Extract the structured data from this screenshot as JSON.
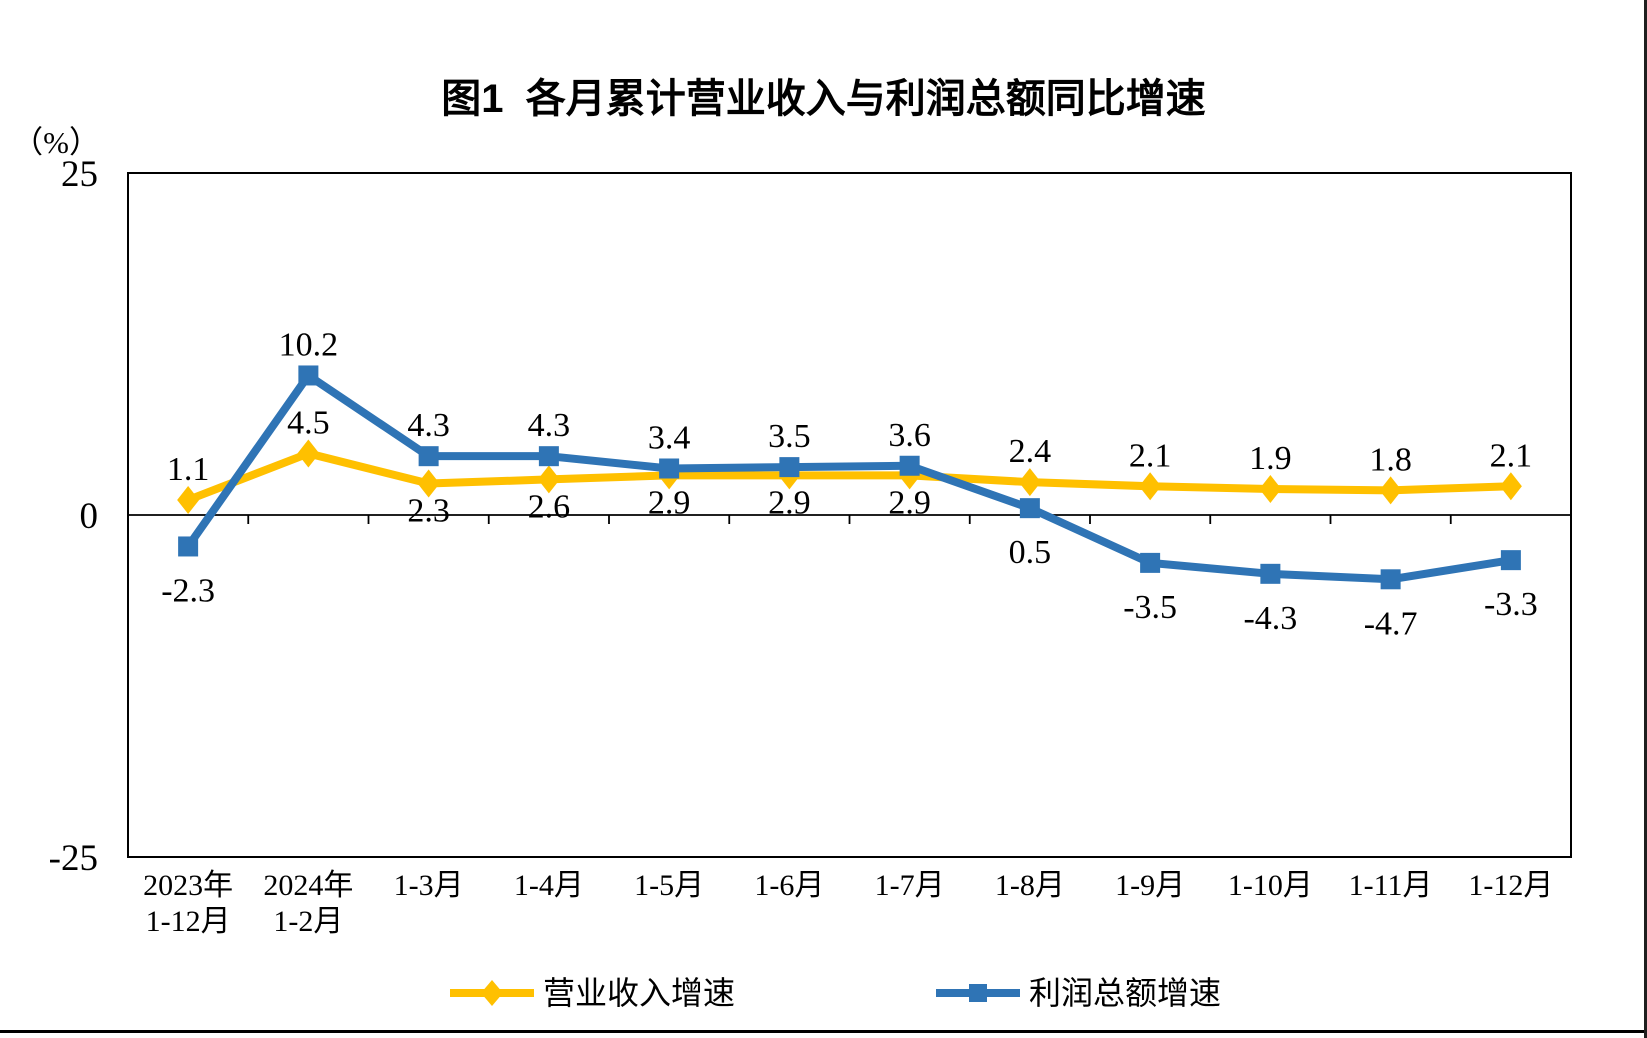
{
  "chart_data": {
    "type": "line",
    "title": "图1  各月累计营业收入与利润总额同比增速",
    "ylabel": "（%）",
    "xlabel": "",
    "ylim": [
      -25,
      25
    ],
    "yticks": [
      25,
      0,
      -25
    ],
    "grid": false,
    "legend_position": "bottom",
    "categories": [
      [
        "2023年",
        "1-12月"
      ],
      [
        "2024年",
        "1-2月"
      ],
      [
        "1-3月"
      ],
      [
        "1-4月"
      ],
      [
        "1-5月"
      ],
      [
        "1-6月"
      ],
      [
        "1-7月"
      ],
      [
        "1-8月"
      ],
      [
        "1-9月"
      ],
      [
        "1-10月"
      ],
      [
        "1-11月"
      ],
      [
        "1-12月"
      ]
    ],
    "series": [
      {
        "name": "营业收入增速",
        "color": "#FFC000",
        "marker": "diamond",
        "values": [
          1.1,
          4.5,
          2.3,
          2.6,
          2.9,
          2.9,
          2.9,
          2.4,
          2.1,
          1.9,
          1.8,
          2.1
        ],
        "label_positions": [
          "above",
          "above",
          "below",
          "below",
          "below",
          "below",
          "below",
          "above",
          "above",
          "above",
          "above",
          "above"
        ]
      },
      {
        "name": "利润总额增速",
        "color": "#2F74B5",
        "marker": "square",
        "values": [
          -2.3,
          10.2,
          4.3,
          4.3,
          3.4,
          3.5,
          3.6,
          0.5,
          -3.5,
          -4.3,
          -4.7,
          -3.3
        ],
        "label_positions": [
          "below",
          "above",
          "above",
          "above",
          "above",
          "above",
          "above",
          "below",
          "below",
          "below",
          "below",
          "below"
        ]
      }
    ]
  }
}
